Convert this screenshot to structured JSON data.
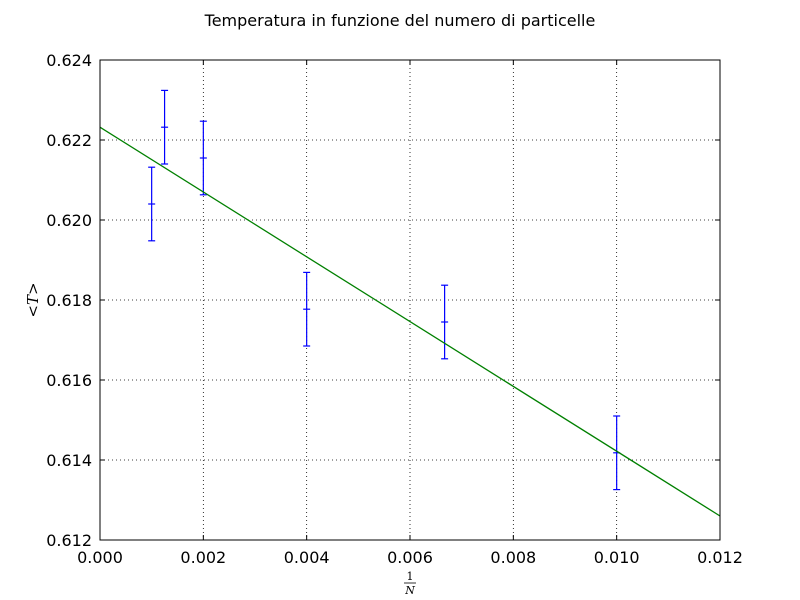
{
  "chart_data": {
    "type": "scatter",
    "title": "Temperatura in funzione del numero di particelle",
    "xlabel": {
      "numerator": "1",
      "denominator": "N"
    },
    "ylabel": "<T>",
    "xlim": [
      0.0,
      0.012
    ],
    "ylim": [
      0.612,
      0.624
    ],
    "xticks": [
      "0.000",
      "0.002",
      "0.004",
      "0.006",
      "0.008",
      "0.010",
      "0.012"
    ],
    "yticks": [
      "0.612",
      "0.614",
      "0.616",
      "0.618",
      "0.620",
      "0.622",
      "0.624"
    ],
    "grid": true,
    "series": [
      {
        "kind": "errorbar",
        "color": "#0000ff",
        "points": [
          {
            "x": 0.001,
            "y": 0.6204,
            "err": 0.00092
          },
          {
            "x": 0.00125,
            "y": 0.62232,
            "err": 0.00092
          },
          {
            "x": 0.002,
            "y": 0.62155,
            "err": 0.00092
          },
          {
            "x": 0.004,
            "y": 0.61777,
            "err": 0.00092
          },
          {
            "x": 0.00667,
            "y": 0.61745,
            "err": 0.00092
          },
          {
            "x": 0.01,
            "y": 0.61418,
            "err": 0.00092
          }
        ]
      },
      {
        "kind": "fit-line",
        "color": "#008000",
        "points": [
          {
            "x": 0.0,
            "y": 0.62232
          },
          {
            "x": 0.012,
            "y": 0.6126
          }
        ]
      }
    ]
  }
}
